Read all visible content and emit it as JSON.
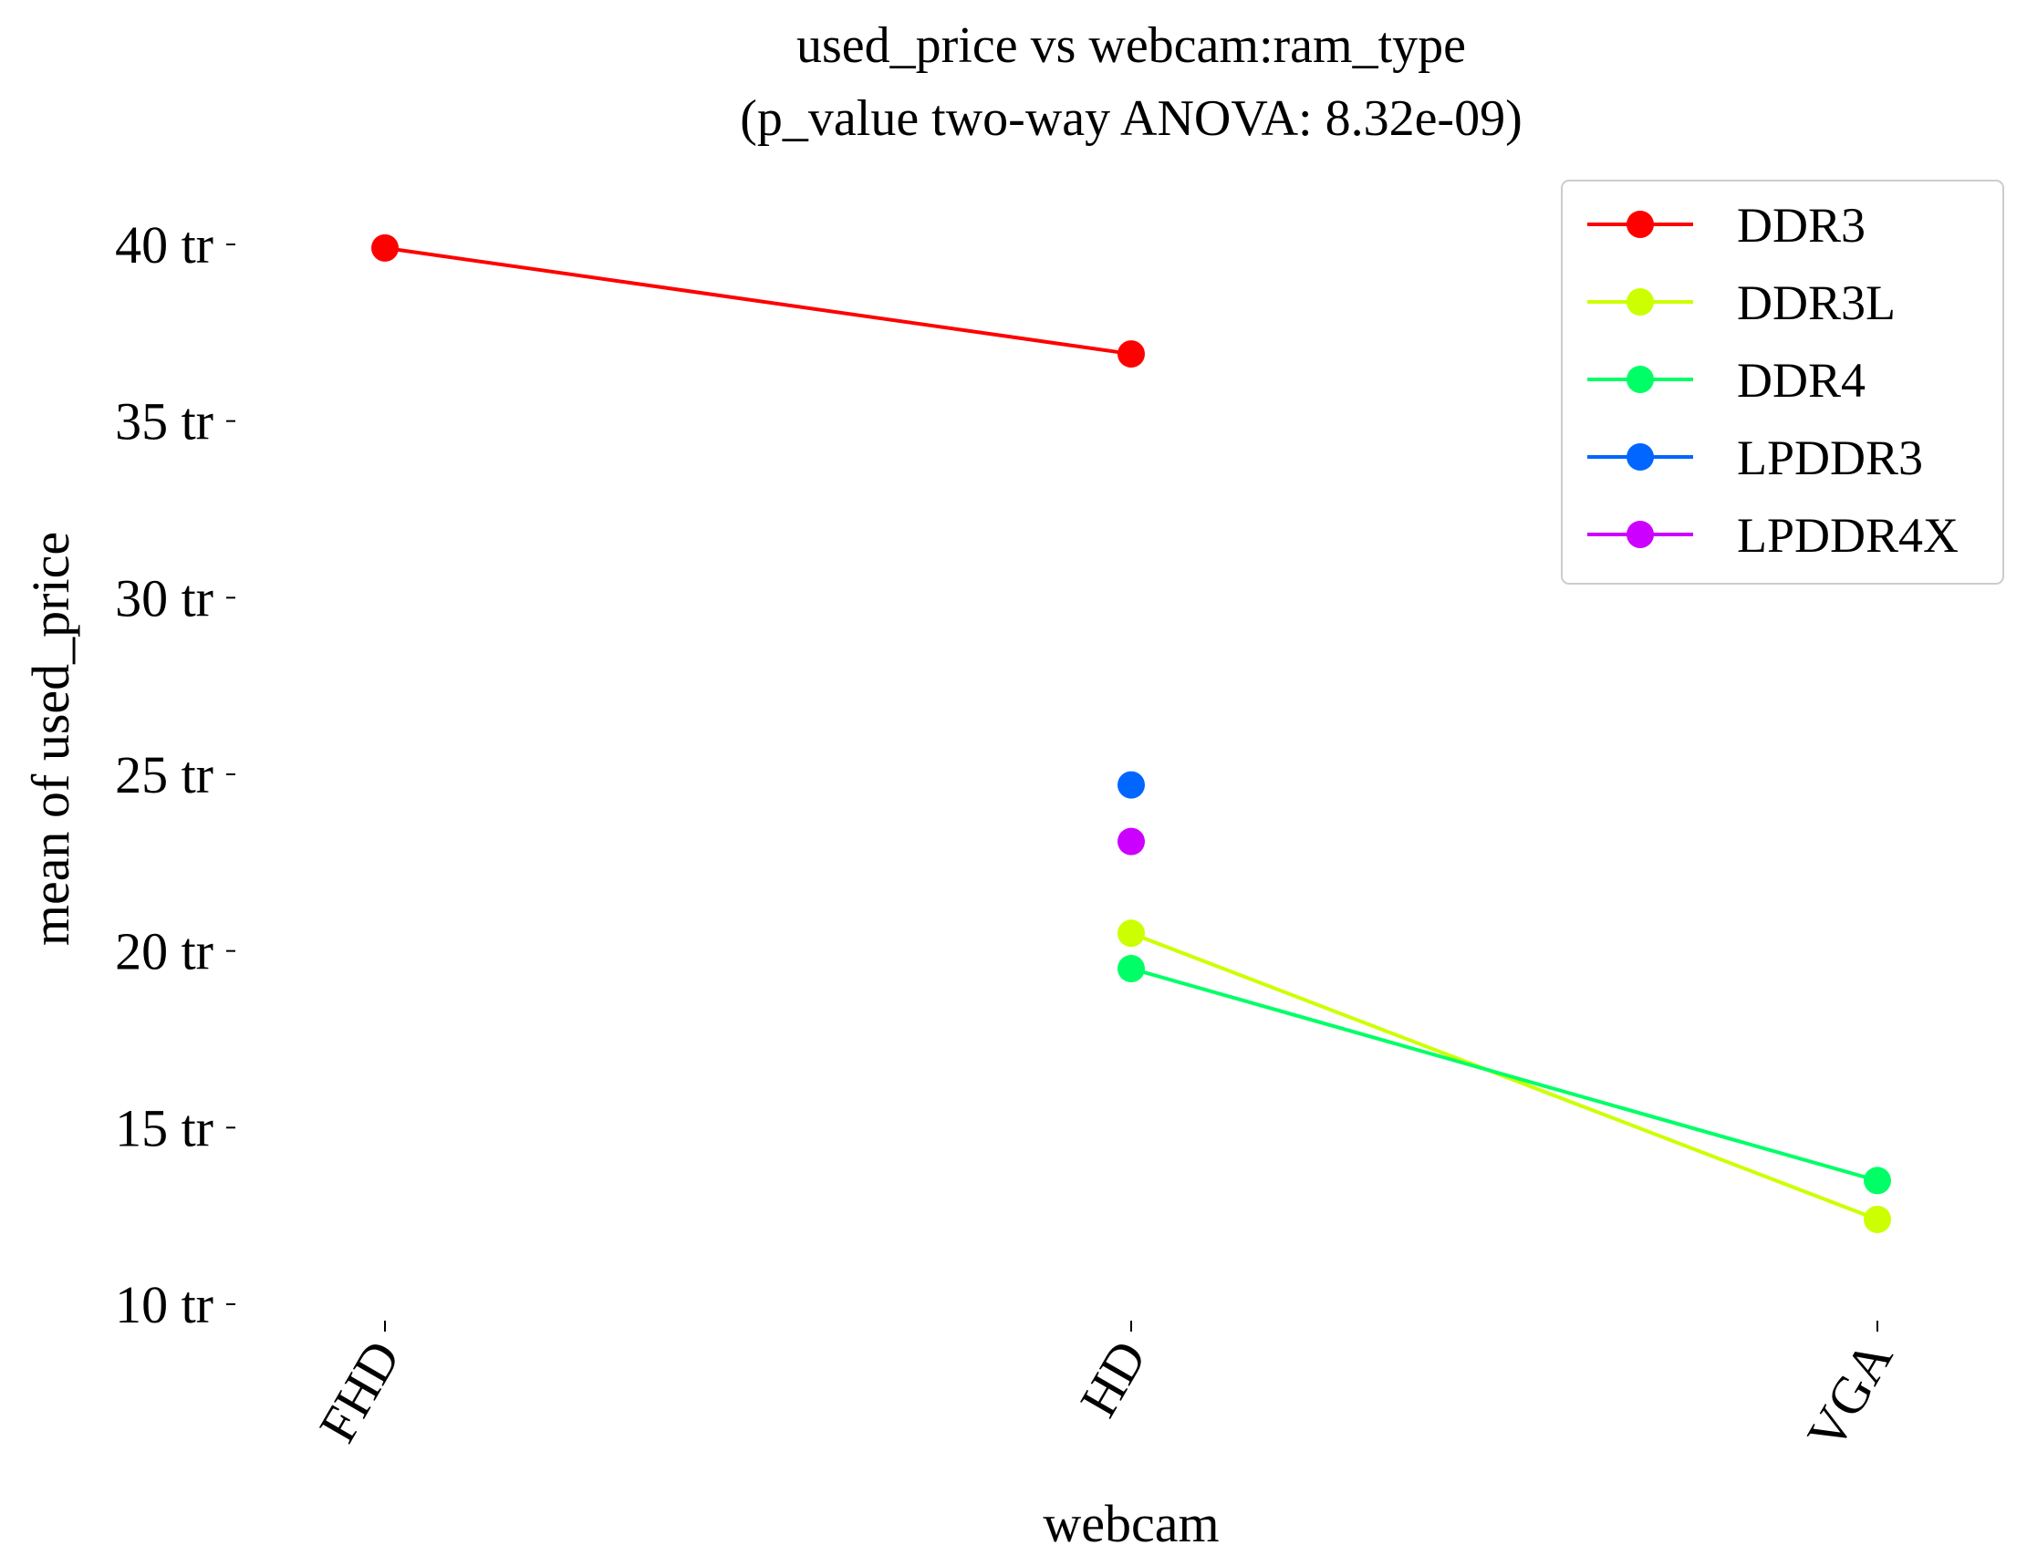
{
  "chart_data": {
    "type": "line",
    "title": "used_price vs webcam:ram_type",
    "subtitle": "(p_value two-way ANOVA: 8.32e-09)",
    "xlabel": "webcam",
    "ylabel": "mean of used_price",
    "categories": [
      "FHD",
      "HD",
      "VGA"
    ],
    "ylim": [
      9.5,
      42.8
    ],
    "y_ticks": [
      10,
      15,
      20,
      25,
      30,
      35,
      40
    ],
    "y_tick_suffix": " tr",
    "grid": false,
    "legend_position": "top-right",
    "series": [
      {
        "name": "DDR3",
        "color": "#ff0000",
        "values": [
          39.9,
          36.9,
          null
        ]
      },
      {
        "name": "DDR3L",
        "color": "#ccff00",
        "values": [
          null,
          20.5,
          12.4
        ]
      },
      {
        "name": "DDR4",
        "color": "#00ff66",
        "values": [
          null,
          19.5,
          13.5
        ]
      },
      {
        "name": "LPDDR3",
        "color": "#0066ff",
        "values": [
          null,
          24.7,
          null
        ]
      },
      {
        "name": "LPDDR4X",
        "color": "#cc00ff",
        "values": [
          null,
          23.1,
          null
        ]
      }
    ]
  }
}
